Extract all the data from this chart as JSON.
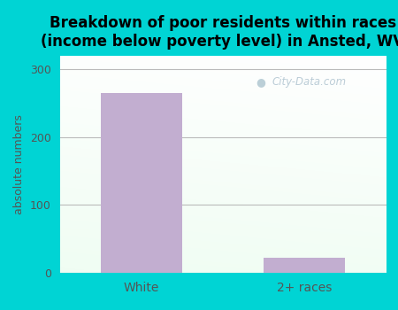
{
  "categories": [
    "White",
    "2+ races"
  ],
  "values": [
    265,
    22
  ],
  "bar_color": "#c2aed0",
  "title": "Breakdown of poor residents within races\n(income below poverty level) in Ansted, WV",
  "ylabel": "absolute numbers",
  "ylim": [
    0,
    320
  ],
  "yticks": [
    0,
    100,
    200,
    300
  ],
  "outer_bg": "#00d4d4",
  "watermark": "City-Data.com",
  "title_fontsize": 12,
  "ylabel_fontsize": 9,
  "grid_color": "#cccccc",
  "tick_color": "#555555"
}
